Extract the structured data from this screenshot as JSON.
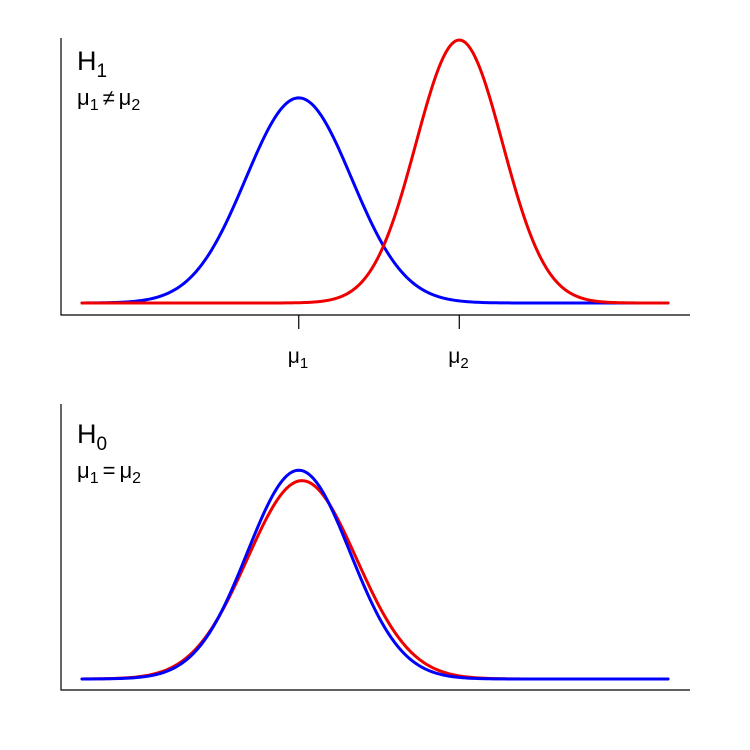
{
  "chart_data": [
    {
      "type": "line",
      "title": "H",
      "title_subscript": "1",
      "subtitle": "μ1 ≠ μ2",
      "subtitle_parts": {
        "a": "μ",
        "a_sub": "1",
        "op": "≠",
        "b": "μ",
        "b_sub": "2"
      },
      "x_ticks": [
        {
          "x": 0,
          "label": "μ",
          "sub": "1"
        },
        {
          "x": 1,
          "label": "μ",
          "sub": "2"
        }
      ],
      "xlim": [
        -1.35,
        2.3
      ],
      "ylim": [
        0,
        1.0
      ],
      "grid": false,
      "series": [
        {
          "color": "#0000ff",
          "mean": 0,
          "sd": 0.33,
          "peak": 0.78
        },
        {
          "color": "#ee0000",
          "mean": 1,
          "sd": 0.27,
          "peak": 1.0
        }
      ]
    },
    {
      "type": "line",
      "title": "H",
      "title_subscript": "0",
      "subtitle": "μ1 = μ2",
      "subtitle_parts": {
        "a": "μ",
        "a_sub": "1",
        "op": "=",
        "b": "μ",
        "b_sub": "2"
      },
      "x_ticks": [],
      "xlim": [
        -1.35,
        2.3
      ],
      "ylim": [
        0,
        1.0
      ],
      "grid": false,
      "series": [
        {
          "color": "#ee0000",
          "mean": 0.02,
          "sd": 0.34,
          "peak": 0.76
        },
        {
          "color": "#0000ff",
          "mean": 0,
          "sd": 0.32,
          "peak": 0.8
        }
      ]
    }
  ]
}
